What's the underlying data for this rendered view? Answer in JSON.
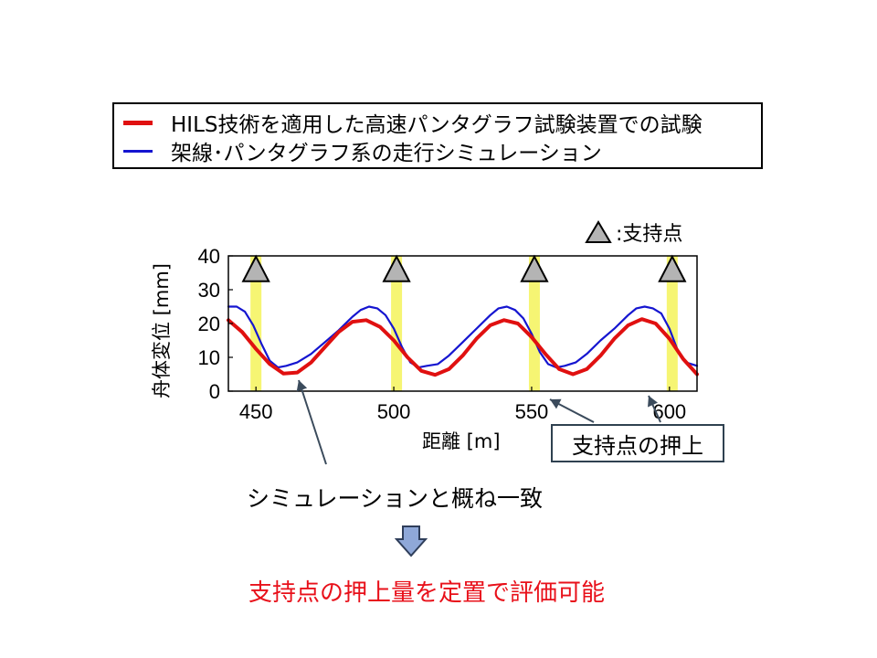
{
  "legend": {
    "items": [
      {
        "label": "HILS技術を適用した高速パンタグラフ試験装置での試験",
        "color": "#e01010"
      },
      {
        "label": "架線･パンタグラフ系の走行シミュレーション",
        "color": "#1515d0"
      }
    ]
  },
  "support_key": {
    "label": ":支持点",
    "icon": "triangle-icon"
  },
  "annotations": {
    "support_pushup": "支持点の押上",
    "agreement": "シミュレーションと概ね一致",
    "conclusion": "支持点の押上量を定置で評価可能"
  },
  "colors": {
    "test": "#e01010",
    "simulation": "#1515d0",
    "highlight": "#f5f35a",
    "conclusion": "#e8101a"
  },
  "chart_data": {
    "type": "line",
    "xlabel": "距離 [m]",
    "ylabel": "舟体変位 [mm]",
    "xlim": [
      440,
      610
    ],
    "ylim": [
      0,
      40
    ],
    "xticks": [
      450,
      500,
      550,
      600
    ],
    "yticks": [
      0,
      10,
      20,
      30,
      40
    ],
    "support_points_x": [
      450,
      501,
      551,
      601
    ],
    "series": [
      {
        "name": "HILS技術を適用した高速パンタグラフ試験装置での試験",
        "color": "#e01010",
        "x": [
          440,
          445,
          450,
          455,
          460,
          465,
          470,
          475,
          480,
          485,
          490,
          495,
          500,
          505,
          510,
          515,
          520,
          525,
          530,
          535,
          540,
          545,
          550,
          555,
          560,
          565,
          570,
          575,
          580,
          585,
          590,
          595,
          600,
          605,
          610
        ],
        "y": [
          21,
          17.5,
          12.5,
          8,
          5.2,
          5.5,
          8.5,
          13,
          17.5,
          20.5,
          21,
          19,
          15,
          10,
          6,
          4.8,
          6.5,
          10.5,
          15.5,
          19.5,
          21,
          20,
          16,
          11,
          6.5,
          5,
          6.5,
          10.5,
          15.5,
          19.5,
          21.3,
          20,
          15.5,
          9.5,
          5
        ]
      },
      {
        "name": "架線･パンタグラフ系の走行シミュレーション",
        "color": "#1515d0",
        "x": [
          440,
          443,
          446,
          449,
          452,
          455,
          458,
          461,
          465,
          470,
          475,
          480,
          485,
          488,
          491,
          494,
          497,
          500,
          503,
          506,
          509,
          512,
          516,
          520,
          525,
          530,
          535,
          538,
          541,
          544,
          547,
          550,
          553,
          556,
          559,
          562,
          566,
          570,
          575,
          580,
          585,
          588,
          591,
          594,
          597,
          600,
          603,
          606,
          610
        ],
        "y": [
          25,
          25,
          23.5,
          19.5,
          14,
          9,
          7,
          7.5,
          8.5,
          11,
          14.5,
          18,
          22,
          24,
          25,
          24.5,
          22.5,
          18.5,
          13,
          8.5,
          7,
          7.5,
          8,
          10.5,
          14.5,
          18.5,
          22.5,
          24.5,
          25,
          24,
          21.5,
          17,
          11.5,
          8,
          7,
          7.5,
          8.5,
          11,
          15,
          18.5,
          22.5,
          24.5,
          25,
          24.5,
          23,
          18.5,
          12,
          8.5,
          7.5
        ]
      }
    ],
    "markers": {
      "type": "triangle",
      "y": 36
    }
  }
}
